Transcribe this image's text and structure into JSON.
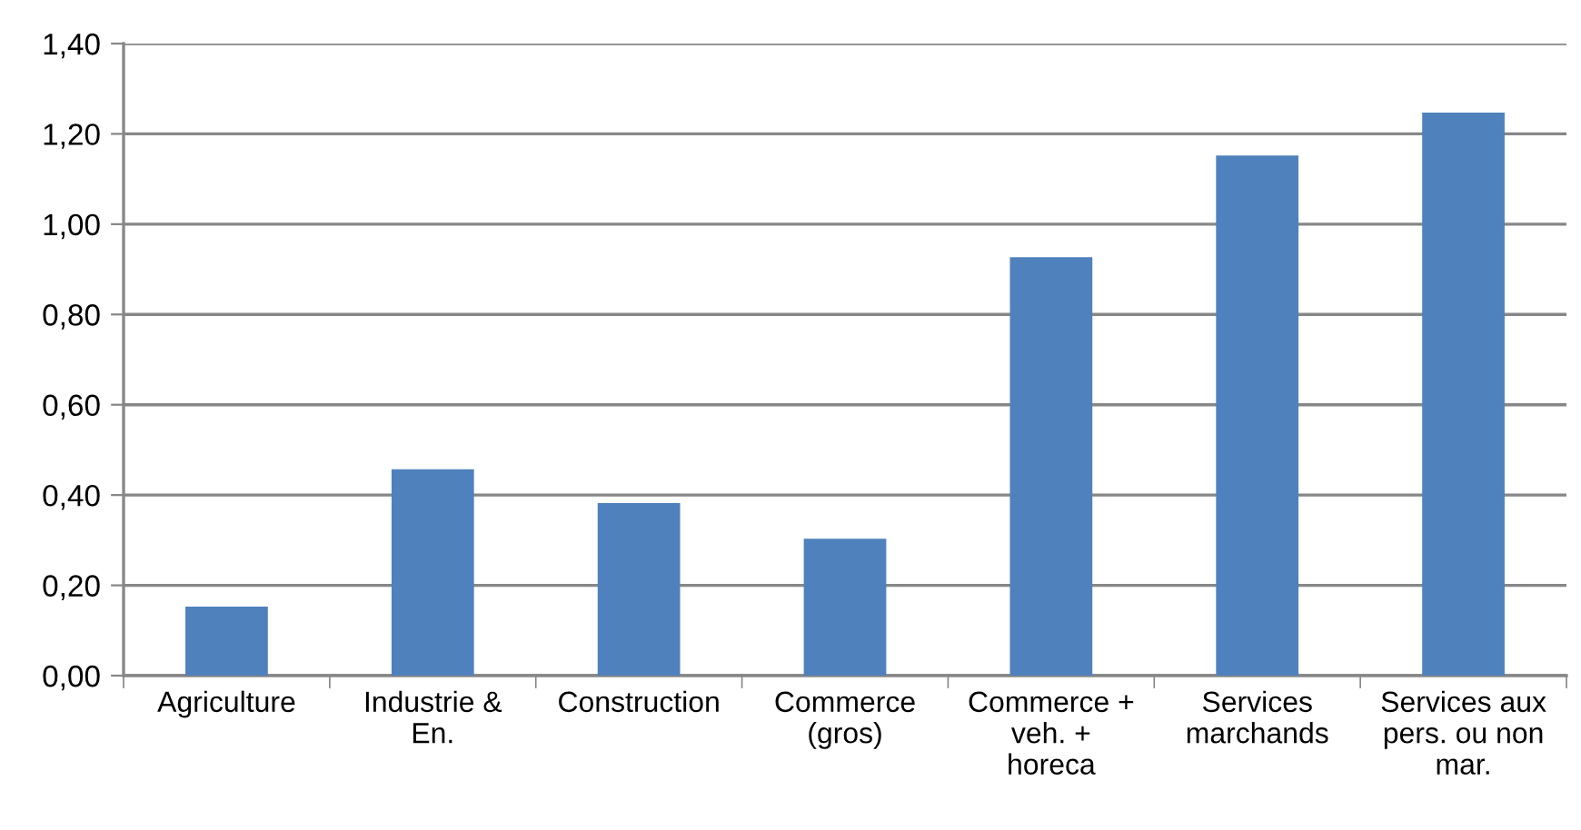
{
  "chart_data": {
    "type": "bar",
    "categories": [
      "Agriculture",
      "Industrie &\nEn.",
      "Construction",
      "Commerce\n(gros)",
      "Commerce +\nveh. +\nhoreca",
      "Services\nmarchands",
      "Services aux\npers. ou non\nmar."
    ],
    "values": [
      0.153,
      0.457,
      0.382,
      0.303,
      0.927,
      1.152,
      1.247
    ],
    "color": "#4f81bd",
    "ylim": [
      0,
      1.4
    ],
    "yticks": [
      {
        "value": 0,
        "label": "0,00"
      },
      {
        "value": 0.2,
        "label": "0,20"
      },
      {
        "value": 0.4,
        "label": "0,40"
      },
      {
        "value": 0.6,
        "label": "0,60"
      },
      {
        "value": 0.8,
        "label": "0,80"
      },
      {
        "value": 1.0,
        "label": "1,00"
      },
      {
        "value": 1.2,
        "label": "1,20"
      },
      {
        "value": 1.4,
        "label": "1,40"
      }
    ],
    "grid": "y"
  }
}
